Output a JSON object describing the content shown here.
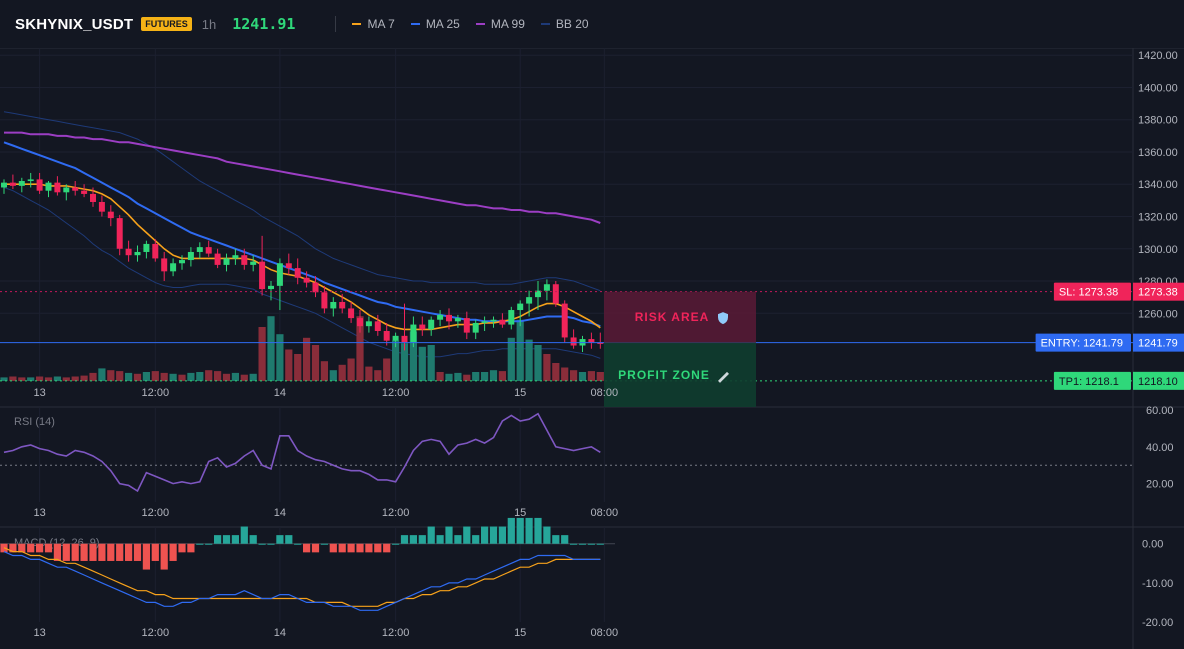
{
  "header": {
    "symbol": "SKHYNIX_USDT",
    "badge": "FUTURES",
    "timeframe": "1h",
    "price": "1241.91"
  },
  "legend": [
    {
      "label": "MA 7",
      "color": "#f7a21b"
    },
    {
      "label": "MA 25",
      "color": "#2f6bf2"
    },
    {
      "label": "MA 99",
      "color": "#9c3ec4"
    },
    {
      "label": "BB 20",
      "color": "#1e3a78"
    }
  ],
  "colors": {
    "up": "#2fd87a",
    "down": "#f0245a",
    "vol_up": "#1f7a6e",
    "vol_down": "#8a2d3a",
    "ma7": "#f7a21b",
    "ma25": "#2f6bf2",
    "ma99": "#9c3ec4",
    "bb": "#1e3a78",
    "rsi": "#7e57c2",
    "macd_line": "#2f6bf2",
    "macd_signal": "#f7a21b",
    "hist_pos": "#26a69a",
    "hist_neg": "#ef5350"
  },
  "price_axis": {
    "ticks": [
      "1420.00",
      "1400.00",
      "1380.00",
      "1360.00",
      "1340.00",
      "1320.00",
      "1300.00",
      "1280.00",
      "1260.00"
    ],
    "range": [
      1218,
      1422
    ]
  },
  "time_axis": {
    "labels": [
      "13",
      "12:00",
      "14",
      "12:00",
      "15",
      "08:00"
    ]
  },
  "levels": {
    "sl": {
      "price": 1273.38,
      "tag": "SL: 1273.38",
      "value": "1273.38"
    },
    "entry": {
      "price": 1241.79,
      "tag": "ENTRY: 1241.79",
      "value": "1241.79"
    },
    "tp1": {
      "price": 1218.1,
      "tag": "TP1: 1218.1",
      "value": "1218.10"
    }
  },
  "zones": {
    "risk_label": "RISK AREA",
    "profit_label": "PROFIT ZONE"
  },
  "rsi": {
    "title": "RSI (14)",
    "ticks": [
      "60.00",
      "40.00",
      "20.00"
    ],
    "range": [
      10,
      60
    ],
    "level": 30
  },
  "macd": {
    "title": "MACD (12, 26, 9)",
    "ticks": [
      "0.00",
      "-10.00",
      "-20.00"
    ],
    "range": [
      -20,
      3
    ]
  },
  "chart_data": {
    "type": "candlestick",
    "candles": [
      [
        1338,
        1343,
        1334,
        1341
      ],
      [
        1341,
        1346,
        1337,
        1339
      ],
      [
        1339,
        1344,
        1335,
        1342
      ],
      [
        1342,
        1347,
        1338,
        1343
      ],
      [
        1343,
        1347,
        1334,
        1336
      ],
      [
        1336,
        1342,
        1332,
        1341
      ],
      [
        1341,
        1345,
        1333,
        1335
      ],
      [
        1335,
        1340,
        1330,
        1338
      ],
      [
        1338,
        1342,
        1333,
        1336
      ],
      [
        1336,
        1340,
        1332,
        1334
      ],
      [
        1334,
        1338,
        1326,
        1329
      ],
      [
        1329,
        1333,
        1320,
        1323
      ],
      [
        1323,
        1327,
        1314,
        1319
      ],
      [
        1319,
        1321,
        1296,
        1300
      ],
      [
        1300,
        1305,
        1292,
        1296
      ],
      [
        1296,
        1302,
        1292,
        1298
      ],
      [
        1298,
        1305,
        1294,
        1303
      ],
      [
        1303,
        1306,
        1292,
        1294
      ],
      [
        1294,
        1298,
        1280,
        1286
      ],
      [
        1286,
        1294,
        1283,
        1291
      ],
      [
        1291,
        1296,
        1287,
        1293
      ],
      [
        1293,
        1301,
        1289,
        1298
      ],
      [
        1298,
        1304,
        1294,
        1301
      ],
      [
        1301,
        1305,
        1295,
        1297
      ],
      [
        1297,
        1300,
        1288,
        1290
      ],
      [
        1290,
        1297,
        1286,
        1294
      ],
      [
        1294,
        1300,
        1290,
        1296
      ],
      [
        1296,
        1300,
        1287,
        1290
      ],
      [
        1290,
        1296,
        1286,
        1292
      ],
      [
        1292,
        1308,
        1271,
        1275
      ],
      [
        1275,
        1280,
        1268,
        1277
      ],
      [
        1277,
        1294,
        1262,
        1291
      ],
      [
        1291,
        1297,
        1284,
        1288
      ],
      [
        1288,
        1294,
        1278,
        1282
      ],
      [
        1282,
        1286,
        1276,
        1279
      ],
      [
        1279,
        1283,
        1270,
        1273
      ],
      [
        1273,
        1277,
        1260,
        1263
      ],
      [
        1263,
        1270,
        1258,
        1267
      ],
      [
        1267,
        1272,
        1260,
        1263
      ],
      [
        1263,
        1267,
        1254,
        1257
      ],
      [
        1257,
        1262,
        1248,
        1252
      ],
      [
        1252,
        1258,
        1248,
        1255
      ],
      [
        1255,
        1259,
        1246,
        1249
      ],
      [
        1249,
        1254,
        1240,
        1243
      ],
      [
        1243,
        1248,
        1239,
        1246
      ],
      [
        1246,
        1266,
        1237,
        1242
      ],
      [
        1242,
        1258,
        1239,
        1253
      ],
      [
        1253,
        1258,
        1246,
        1250
      ],
      [
        1250,
        1258,
        1246,
        1256
      ],
      [
        1256,
        1262,
        1252,
        1259
      ],
      [
        1259,
        1263,
        1250,
        1255
      ],
      [
        1255,
        1259,
        1251,
        1257
      ],
      [
        1257,
        1261,
        1244,
        1248
      ],
      [
        1248,
        1256,
        1244,
        1254
      ],
      [
        1254,
        1258,
        1249,
        1255
      ],
      [
        1255,
        1258,
        1251,
        1256
      ],
      [
        1256,
        1260,
        1251,
        1253
      ],
      [
        1253,
        1264,
        1250,
        1262
      ],
      [
        1262,
        1268,
        1252,
        1266
      ],
      [
        1266,
        1274,
        1258,
        1270
      ],
      [
        1270,
        1280,
        1262,
        1274
      ],
      [
        1274,
        1281,
        1268,
        1278
      ],
      [
        1278,
        1280,
        1264,
        1266
      ],
      [
        1266,
        1268,
        1242,
        1245
      ],
      [
        1245,
        1250,
        1238,
        1240
      ],
      [
        1240,
        1246,
        1236,
        1244
      ],
      [
        1244,
        1248,
        1238,
        1242
      ],
      [
        1242,
        1248,
        1238,
        1241
      ]
    ],
    "volume": [
      [
        4,
        0
      ],
      [
        5,
        1
      ],
      [
        4,
        1
      ],
      [
        4,
        0
      ],
      [
        5,
        1
      ],
      [
        4,
        1
      ],
      [
        5,
        0
      ],
      [
        4,
        1
      ],
      [
        5,
        1
      ],
      [
        6,
        1
      ],
      [
        9,
        1
      ],
      [
        14,
        0
      ],
      [
        12,
        1
      ],
      [
        11,
        1
      ],
      [
        9,
        0
      ],
      [
        8,
        1
      ],
      [
        10,
        0
      ],
      [
        11,
        1
      ],
      [
        9,
        1
      ],
      [
        8,
        0
      ],
      [
        7,
        1
      ],
      [
        9,
        0
      ],
      [
        10,
        0
      ],
      [
        12,
        1
      ],
      [
        11,
        1
      ],
      [
        8,
        1
      ],
      [
        9,
        0
      ],
      [
        7,
        1
      ],
      [
        8,
        0
      ],
      [
        60,
        1
      ],
      [
        72,
        0
      ],
      [
        52,
        0
      ],
      [
        35,
        1
      ],
      [
        30,
        1
      ],
      [
        48,
        1
      ],
      [
        40,
        1
      ],
      [
        22,
        1
      ],
      [
        12,
        0
      ],
      [
        18,
        1
      ],
      [
        25,
        1
      ],
      [
        72,
        1
      ],
      [
        16,
        1
      ],
      [
        12,
        1
      ],
      [
        25,
        1
      ],
      [
        45,
        0
      ],
      [
        42,
        0
      ],
      [
        55,
        0
      ],
      [
        38,
        0
      ],
      [
        40,
        0
      ],
      [
        10,
        1
      ],
      [
        8,
        0
      ],
      [
        9,
        0
      ],
      [
        7,
        1
      ],
      [
        10,
        0
      ],
      [
        10,
        0
      ],
      [
        12,
        0
      ],
      [
        11,
        1
      ],
      [
        48,
        0
      ],
      [
        68,
        0
      ],
      [
        46,
        0
      ],
      [
        40,
        0
      ],
      [
        30,
        1
      ],
      [
        20,
        1
      ],
      [
        15,
        1
      ],
      [
        12,
        1
      ],
      [
        10,
        0
      ],
      [
        11,
        1
      ],
      [
        10,
        1
      ]
    ],
    "ma7": [
      1340,
      1340,
      1340,
      1340,
      1340,
      1339,
      1339,
      1339,
      1338,
      1337,
      1336,
      1334,
      1331,
      1326,
      1321,
      1315,
      1310,
      1305,
      1300,
      1296,
      1294,
      1294,
      1294,
      1294,
      1294,
      1294,
      1294,
      1294,
      1293,
      1290,
      1287,
      1285,
      1284,
      1283,
      1281,
      1279,
      1276,
      1273,
      1270,
      1267,
      1263,
      1259,
      1256,
      1253,
      1251,
      1250,
      1250,
      1250,
      1250,
      1251,
      1252,
      1253,
      1253,
      1253,
      1254,
      1254,
      1255,
      1256,
      1258,
      1261,
      1264,
      1266,
      1266,
      1264,
      1261,
      1258,
      1255,
      1251
    ],
    "ma25": [
      1366,
      1364,
      1362,
      1360,
      1358,
      1356,
      1354,
      1352,
      1350,
      1347,
      1344,
      1341,
      1338,
      1335,
      1332,
      1328,
      1325,
      1322,
      1319,
      1316,
      1313,
      1310,
      1308,
      1306,
      1304,
      1302,
      1300,
      1298,
      1296,
      1294,
      1292,
      1290,
      1288,
      1286,
      1284,
      1282,
      1279,
      1277,
      1275,
      1273,
      1271,
      1269,
      1267,
      1266,
      1264,
      1263,
      1262,
      1261,
      1260,
      1259,
      1258,
      1257,
      1256,
      1256,
      1255,
      1255,
      1255,
      1255,
      1255,
      1256,
      1257,
      1258,
      1258,
      1258,
      1257,
      1255,
      1254,
      1252
    ],
    "ma99": [
      1372,
      1372,
      1372,
      1371,
      1371,
      1371,
      1370,
      1370,
      1369,
      1369,
      1368,
      1368,
      1367,
      1366,
      1366,
      1365,
      1364,
      1363,
      1362,
      1361,
      1360,
      1359,
      1358,
      1357,
      1356,
      1354,
      1353,
      1352,
      1351,
      1350,
      1349,
      1348,
      1347,
      1346,
      1345,
      1344,
      1343,
      1342,
      1341,
      1340,
      1339,
      1338,
      1337,
      1336,
      1335,
      1334,
      1333,
      1332,
      1331,
      1330,
      1329,
      1328,
      1327,
      1327,
      1326,
      1325,
      1325,
      1324,
      1324,
      1323,
      1323,
      1322,
      1322,
      1321,
      1320,
      1319,
      1318,
      1316
    ],
    "bb_upper": [
      1385,
      1384,
      1383,
      1382,
      1381,
      1380,
      1379,
      1378,
      1377,
      1376,
      1375,
      1374,
      1373,
      1372,
      1370,
      1368,
      1365,
      1362,
      1358,
      1354,
      1350,
      1346,
      1342,
      1339,
      1336,
      1333,
      1330,
      1327,
      1324,
      1320,
      1317,
      1314,
      1311,
      1308,
      1304,
      1300,
      1297,
      1294,
      1292,
      1290,
      1288,
      1286,
      1284,
      1283,
      1282,
      1281,
      1280,
      1280,
      1279,
      1279,
      1279,
      1279,
      1279,
      1279,
      1278,
      1278,
      1278,
      1278,
      1279,
      1280,
      1281,
      1282,
      1282,
      1281,
      1280,
      1278,
      1276,
      1274
    ],
    "bb_lower": [
      1338,
      1336,
      1333,
      1330,
      1327,
      1324,
      1320,
      1316,
      1312,
      1308,
      1303,
      1299,
      1296,
      1292,
      1288,
      1285,
      1282,
      1279,
      1277,
      1276,
      1276,
      1277,
      1278,
      1278,
      1278,
      1278,
      1277,
      1276,
      1275,
      1272,
      1270,
      1268,
      1266,
      1264,
      1262,
      1260,
      1257,
      1254,
      1251,
      1248,
      1245,
      1242,
      1240,
      1238,
      1236,
      1235,
      1234,
      1233,
      1233,
      1233,
      1234,
      1235,
      1235,
      1236,
      1237,
      1237,
      1238,
      1238,
      1238,
      1238,
      1238,
      1238,
      1238,
      1237,
      1236,
      1235,
      1234,
      1232
    ],
    "rsi": [
      37,
      38,
      40,
      41,
      39,
      38,
      36,
      35,
      38,
      37,
      35,
      32,
      27,
      20,
      19,
      16,
      26,
      24,
      22,
      20,
      21,
      20,
      21,
      32,
      34,
      29,
      31,
      35,
      38,
      30,
      28,
      46,
      46,
      38,
      35,
      33,
      32,
      30,
      28,
      27,
      27,
      25,
      22,
      22,
      21,
      29,
      38,
      43,
      44,
      43,
      36,
      41,
      42,
      44,
      42,
      45,
      54,
      57,
      54,
      55,
      58,
      49,
      40,
      39,
      38,
      39,
      40,
      37
    ],
    "macd_line": [
      -2,
      -3,
      -3,
      -4,
      -4,
      -5,
      -6,
      -6,
      -7,
      -8,
      -9,
      -10,
      -11,
      -12,
      -13,
      -14,
      -15,
      -15,
      -16,
      -16,
      -15,
      -15,
      -14,
      -14,
      -13,
      -13,
      -13,
      -12,
      -13,
      -14,
      -14,
      -13,
      -13,
      -14,
      -15,
      -15,
      -15,
      -16,
      -16,
      -16,
      -17,
      -17,
      -17,
      -16,
      -15,
      -14,
      -13,
      -12,
      -11,
      -11,
      -10,
      -10,
      -9,
      -9,
      -8,
      -7,
      -6,
      -5,
      -4,
      -4,
      -3,
      -3,
      -3,
      -3,
      -4,
      -4,
      -4,
      -4
    ],
    "macd_signal": [
      -1,
      -2,
      -2,
      -3,
      -3,
      -4,
      -4,
      -5,
      -5,
      -6,
      -7,
      -8,
      -9,
      -10,
      -11,
      -12,
      -12,
      -13,
      -13,
      -14,
      -14,
      -14,
      -14,
      -14,
      -14,
      -14,
      -14,
      -14,
      -14,
      -14,
      -14,
      -14,
      -14,
      -14,
      -14,
      -15,
      -15,
      -15,
      -15,
      -16,
      -16,
      -16,
      -16,
      -15,
      -15,
      -14,
      -14,
      -13,
      -13,
      -12,
      -12,
      -11,
      -11,
      -10,
      -9,
      -9,
      -8,
      -7,
      -6,
      -6,
      -5,
      -5,
      -4,
      -4,
      -4,
      -4,
      -4,
      -4
    ],
    "macd_hist": [
      -1,
      -1,
      -1,
      -1,
      -1,
      -1,
      -2,
      -2,
      -2,
      -2,
      -2,
      -2,
      -2,
      -2,
      -2,
      -2,
      -3,
      -2,
      -3,
      -2,
      -1,
      -1,
      0,
      0,
      1,
      1,
      1,
      2,
      1,
      0,
      0,
      1,
      1,
      0,
      -1,
      -1,
      0,
      -1,
      -1,
      -1,
      -1,
      -1,
      -1,
      -1,
      0,
      1,
      1,
      1,
      2,
      1,
      2,
      1,
      2,
      1,
      2,
      2,
      2,
      3,
      3,
      3,
      3,
      2,
      1,
      1,
      0,
      0,
      0,
      0
    ]
  }
}
